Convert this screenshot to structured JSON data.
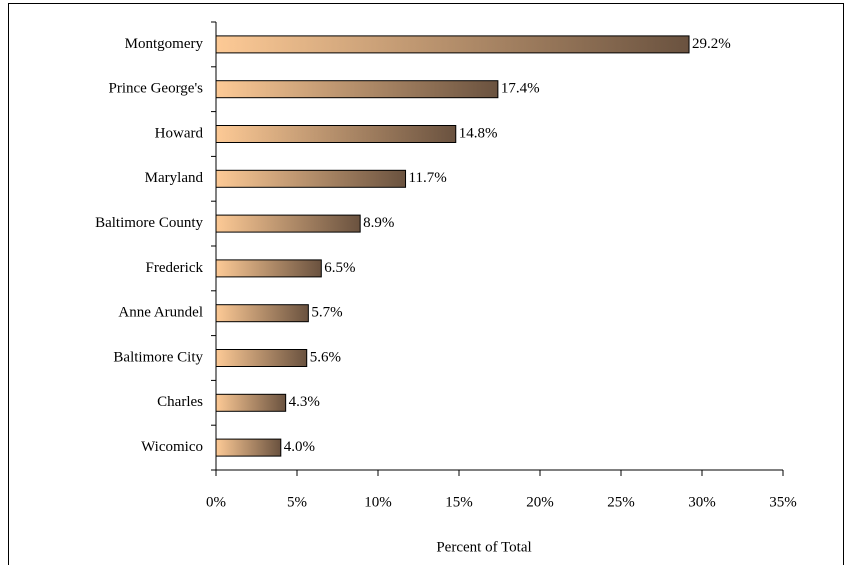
{
  "chart_data": {
    "type": "barh",
    "x_label": "Percent of Total",
    "categories": [
      "Montgomery",
      "Prince George's",
      "Howard",
      "Maryland",
      "Baltimore County",
      "Frederick",
      "Anne Arundel",
      "Baltimore City",
      "Charles",
      "Wicomico"
    ],
    "values": [
      29.2,
      17.4,
      14.8,
      11.7,
      8.9,
      6.5,
      5.7,
      5.6,
      4.3,
      4.0
    ],
    "value_labels": [
      "29.2%",
      "17.4%",
      "14.8%",
      "11.7%",
      "8.9%",
      "6.5%",
      "5.7%",
      "5.6%",
      "4.3%",
      "4.0%"
    ],
    "color": "#fdca96",
    "color_end": "#6a523f",
    "xlim": [
      0,
      35
    ],
    "xticks": [
      {
        "value": 0,
        "label": "0%"
      },
      {
        "value": 5,
        "label": "5%"
      },
      {
        "value": 10,
        "label": "10%"
      },
      {
        "value": 15,
        "label": "15%"
      },
      {
        "value": 20,
        "label": "20%"
      },
      {
        "value": 25,
        "label": "25%"
      },
      {
        "value": 30,
        "label": "30%"
      },
      {
        "value": 35,
        "label": "35%"
      }
    ],
    "grid": false
  }
}
